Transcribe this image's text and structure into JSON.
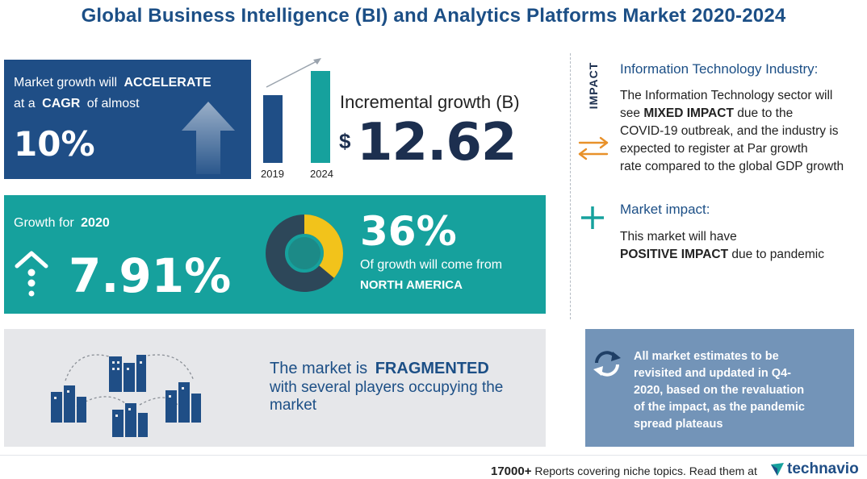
{
  "title": "Global Business Intelligence (BI) and Analytics Platforms Market 2020-2024",
  "cagr_panel": {
    "line1_prefix": "Market growth will",
    "line1_emph": "ACCELERATE",
    "line2_prefix": "at a",
    "line2_emph": "CAGR",
    "line2_suffix": "of almost",
    "value": "10%"
  },
  "incremental": {
    "year_start": "2019",
    "year_end": "2024",
    "label": "Incremental growth (B)",
    "currency": "$",
    "value": "12.62",
    "bar_levels": [
      0.74,
      1.0
    ]
  },
  "growth_panel": {
    "label_prefix": "Growth for",
    "label_year": "2020",
    "value": "7.91%",
    "region_share": "36%",
    "region_text": "Of growth will come from",
    "region_name": "NORTH AMERICA",
    "donut_share_fraction": 0.36
  },
  "fragmented_panel": {
    "line1_prefix": "The market is",
    "line1_emph": "FRAGMENTED",
    "line2": "with several players occupying the",
    "line3": "market"
  },
  "impact": {
    "vertical_label": "IMPACT",
    "industry_heading": "Information Technology Industry:",
    "industry_l1": "The Information Technology sector will",
    "industry_l2_prefix": "see",
    "industry_l2_emph": "MIXED IMPACT",
    "industry_l2_suffix": "due to the",
    "industry_l3": "COVID-19 outbreak, and the industry is",
    "industry_l4": "expected to register at Par growth",
    "industry_l5": "rate compared to the global GDP growth",
    "market_heading": "Market impact:",
    "market_l1": "This market will have",
    "market_l2_emph": "POSITIVE IMPACT",
    "market_l2_suffix": "due to pandemic"
  },
  "note_panel": {
    "l1": "All market estimates to be",
    "l2": "revisited and updated in Q4-",
    "l3": "2020, based on the revaluation",
    "l4": "of the impact, as the pandemic",
    "l5": "spread plateaus"
  },
  "footer": {
    "count": "17000+",
    "text": "Reports covering niche topics. Read them at",
    "brand": "technavio"
  },
  "colors": {
    "navy": "#1f4e86",
    "teal": "#16a19d",
    "gray_panel": "#e6e7ea",
    "blue_panel": "#7394b8",
    "orange": "#e8912a",
    "yellow": "#f2c31b"
  }
}
